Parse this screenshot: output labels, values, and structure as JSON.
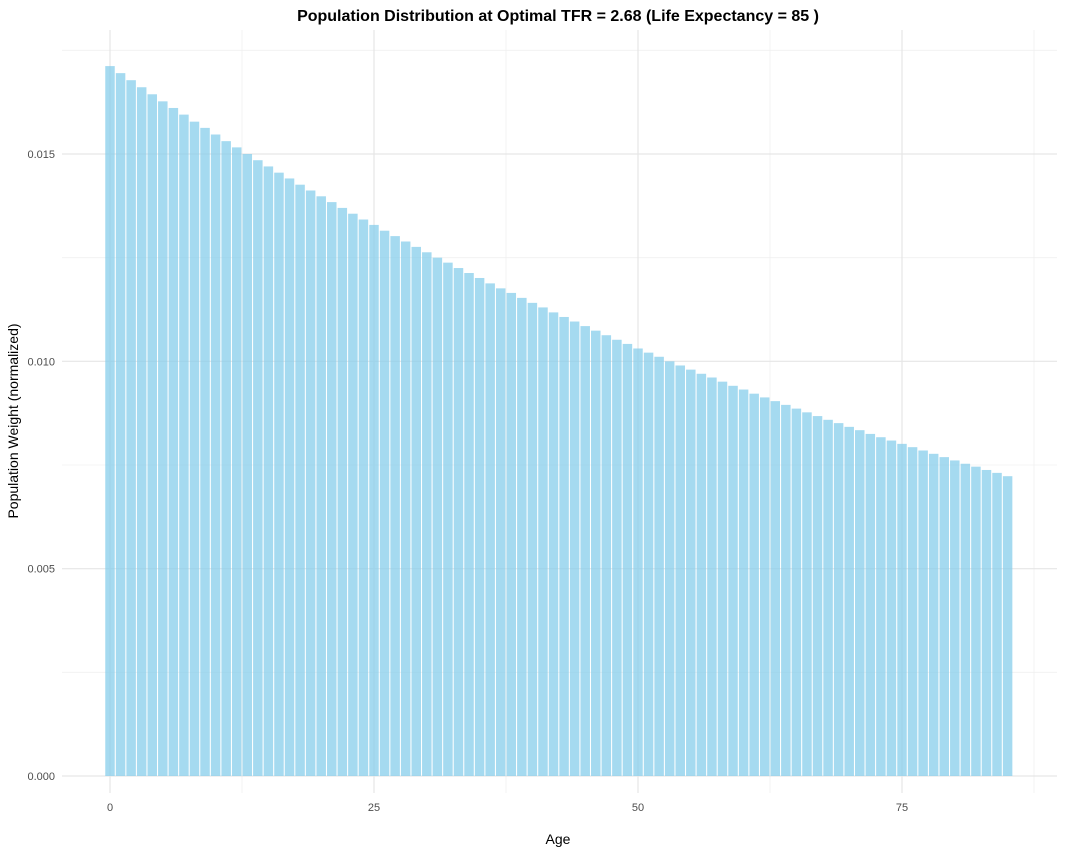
{
  "chart_data": {
    "type": "bar",
    "title": "Population Distribution at Optimal TFR = 2.68 (Life Expectancy = 85 )",
    "xlabel": "Age",
    "ylabel": "Population Weight (normalized)",
    "x_ticks": [
      "0",
      "25",
      "50",
      "75"
    ],
    "x_tick_values": [
      0,
      25,
      50,
      75
    ],
    "y_ticks": [
      "0.000",
      "0.005",
      "0.010",
      "0.015"
    ],
    "y_tick_values": [
      0,
      0.005,
      0.01,
      0.015
    ],
    "xlim": [
      -2.5,
      87.5
    ],
    "ylim": [
      0,
      0.0175
    ],
    "grid": true,
    "legend": "none",
    "bar_color": "#87CEEB",
    "bar_opacity": 0.75,
    "x": [
      0,
      1,
      2,
      3,
      4,
      5,
      6,
      7,
      8,
      9,
      10,
      11,
      12,
      13,
      14,
      15,
      16,
      17,
      18,
      19,
      20,
      21,
      22,
      23,
      24,
      25,
      26,
      27,
      28,
      29,
      30,
      31,
      32,
      33,
      34,
      35,
      36,
      37,
      38,
      39,
      40,
      41,
      42,
      43,
      44,
      45,
      46,
      47,
      48,
      49,
      50,
      51,
      52,
      53,
      54,
      55,
      56,
      57,
      58,
      59,
      60,
      61,
      62,
      63,
      64,
      65,
      66,
      67,
      68,
      69,
      70,
      71,
      72,
      73,
      74,
      75,
      76,
      77,
      78,
      79,
      80,
      81,
      82,
      83,
      84,
      85
    ],
    "values": [
      0.01712,
      0.01695,
      0.01678,
      0.01661,
      0.01644,
      0.01627,
      0.01611,
      0.01595,
      0.01578,
      0.01563,
      0.01547,
      0.01531,
      0.01516,
      0.015,
      0.01485,
      0.0147,
      0.01455,
      0.01441,
      0.01426,
      0.01412,
      0.01398,
      0.01384,
      0.0137,
      0.01356,
      0.01342,
      0.01329,
      0.01315,
      0.01302,
      0.01289,
      0.01276,
      0.01263,
      0.0125,
      0.01238,
      0.01225,
      0.01213,
      0.01201,
      0.01188,
      0.01176,
      0.01165,
      0.01153,
      0.01141,
      0.0113,
      0.01118,
      0.01107,
      0.01096,
      0.01085,
      0.01074,
      0.01063,
      0.01052,
      0.01042,
      0.01031,
      0.01021,
      0.01011,
      0.01,
      0.0099,
      0.0098,
      0.0097,
      0.00961,
      0.00951,
      0.00941,
      0.00932,
      0.00922,
      0.00913,
      0.00904,
      0.00895,
      0.00886,
      0.00877,
      0.00868,
      0.00859,
      0.00851,
      0.00842,
      0.00834,
      0.00825,
      0.00817,
      0.00809,
      0.00801,
      0.00793,
      0.00785,
      0.00777,
      0.00769,
      0.00761,
      0.00753,
      0.00746,
      0.00738,
      0.00731,
      0.00723
    ]
  }
}
